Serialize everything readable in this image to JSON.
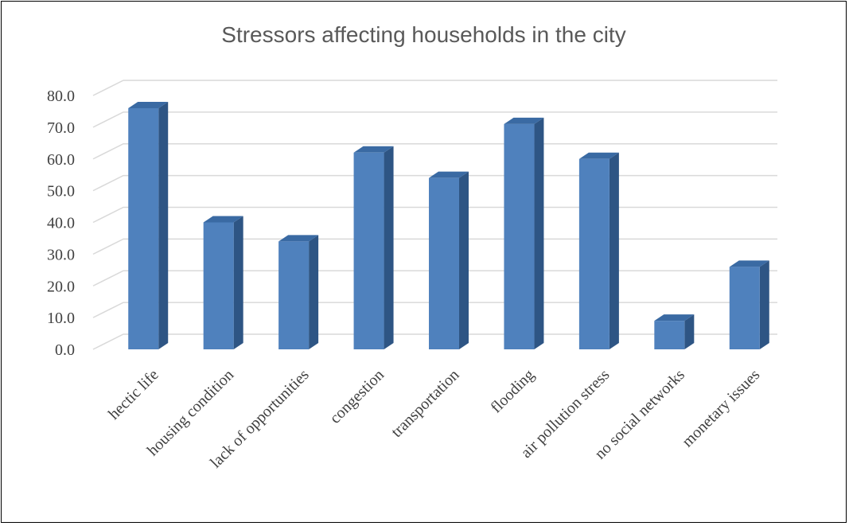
{
  "chart_data": {
    "type": "bar",
    "title": "Stressors affecting households in the city",
    "xlabel": "",
    "ylabel": "",
    "categories": [
      "hectic life",
      "housing condition",
      "lack of opportunities",
      "congestion",
      "transportation",
      "flooding",
      "air pollution stress",
      "no social networks",
      "monetary issues"
    ],
    "values": [
      76,
      40,
      34,
      62,
      54,
      71,
      60,
      9,
      26
    ],
    "ylim": [
      0,
      80
    ],
    "yticks": [
      "0.0",
      "10.0",
      "20.0",
      "30.0",
      "40.0",
      "50.0",
      "60.0",
      "70.0",
      "80.0"
    ],
    "grid": true,
    "legend": "none",
    "style": "3d-column"
  },
  "colors": {
    "bar_front": "#4f81bd",
    "bar_side": "#2e5584",
    "bar_top": "#3a6aa3",
    "grid": "#d9d9d9",
    "title": "#595959",
    "text": "#404040"
  }
}
